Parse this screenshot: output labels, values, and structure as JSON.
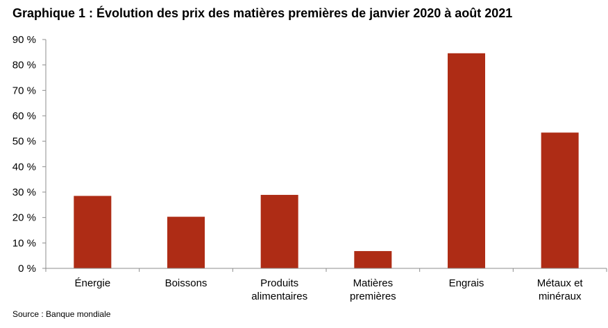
{
  "title": "Graphique 1 : Évolution des prix des matières premières de janvier 2020 à août 2021",
  "source": "Source : Banque mondiale",
  "colors": {
    "bar": "#ae2c15",
    "axis": "#8c8c8c"
  },
  "chart_data": {
    "type": "bar",
    "title": "Graphique 1 : Évolution des prix des matières premières de janvier 2020 à août 2021",
    "xlabel": "",
    "ylabel": "",
    "categories": [
      [
        "Énergie"
      ],
      [
        "Boissons"
      ],
      [
        "Produits",
        "alimentaires"
      ],
      [
        "Matières",
        "premières"
      ],
      [
        "Engrais"
      ],
      [
        "Métaux et",
        "minéraux"
      ]
    ],
    "values": [
      28.5,
      20.3,
      28.9,
      6.8,
      84.6,
      53.4
    ],
    "ylim": [
      0,
      90
    ],
    "yticks": [
      0,
      10,
      20,
      30,
      40,
      50,
      60,
      70,
      80,
      90
    ],
    "ytick_labels": [
      "0 %",
      "10 %",
      "20 %",
      "30 %",
      "40 %",
      "50 %",
      "60 %",
      "70 %",
      "80 %",
      "90 %"
    ],
    "grid": false,
    "legend": "none"
  }
}
